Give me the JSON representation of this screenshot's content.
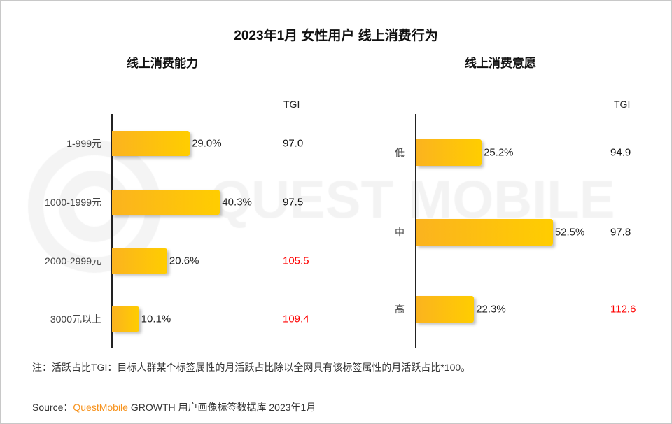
{
  "title": "2023年1月 女性用户 线上消费行为",
  "watermark": "QUEST MOBILE",
  "chart_data": [
    {
      "type": "bar",
      "orientation": "horizontal",
      "title": "线上消费能力",
      "categories": [
        "1-999元",
        "1000-1999元",
        "2000-2999元",
        "3000元以上"
      ],
      "values": [
        29.0,
        40.3,
        20.6,
        10.1
      ],
      "value_labels": [
        "29.0%",
        "40.3%",
        "20.6%",
        "10.1%"
      ],
      "tgi_header": "TGI",
      "tgi": [
        "97.0",
        "97.5",
        "105.5",
        "109.4"
      ],
      "tgi_highlight": [
        false,
        false,
        true,
        true
      ]
    },
    {
      "type": "bar",
      "orientation": "horizontal",
      "title": "线上消费意愿",
      "categories": [
        "低",
        "中",
        "高"
      ],
      "values": [
        25.2,
        52.5,
        22.3
      ],
      "value_labels": [
        "25.2%",
        "52.5%",
        "22.3%"
      ],
      "tgi_header": "TGI",
      "tgi": [
        "94.9",
        "97.8",
        "112.6"
      ],
      "tgi_highlight": [
        false,
        false,
        true
      ]
    }
  ],
  "colors": {
    "bar_start": "#fbb31f",
    "bar_end": "#ffcd00",
    "tgi_highlight": "#ff0000",
    "brand": "#f7931e"
  },
  "note": "注：活跃占比TGI：目标人群某个标签属性的月活跃占比除以全网具有该标签属性的月活跃占比*100。",
  "source": {
    "label": "Source：",
    "brand": "QuestMobile",
    "text": " GROWTH 用户画像标签数据库 2023年1月"
  }
}
